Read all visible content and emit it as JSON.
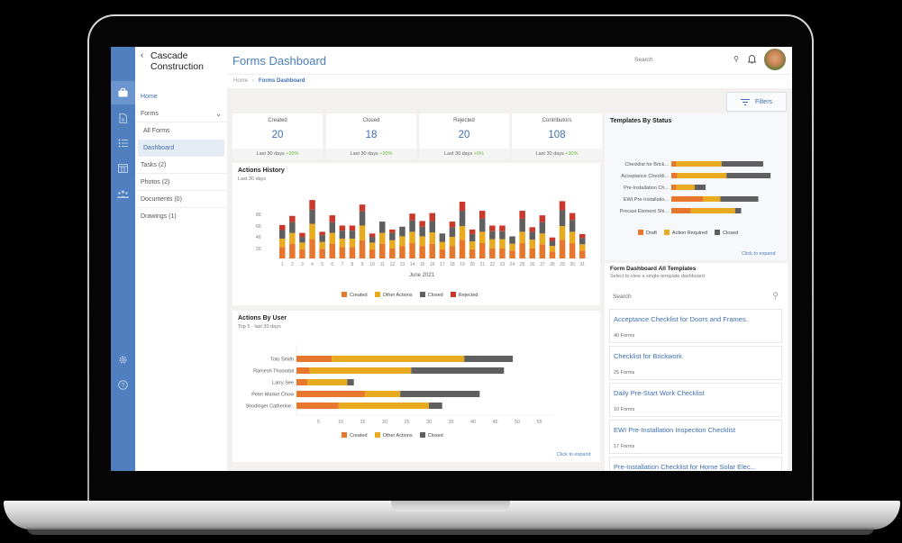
{
  "app": {
    "company": "Cascade Construction",
    "back_icon": "chevron-left-icon",
    "page_title": "Forms Dashboard"
  },
  "iconbar": {
    "items": [
      {
        "icon": "briefcase-icon",
        "active": true
      },
      {
        "icon": "document-icon",
        "active": false
      },
      {
        "icon": "checklist-icon",
        "active": false
      },
      {
        "icon": "table-icon",
        "active": false
      },
      {
        "icon": "team-icon",
        "active": false
      }
    ],
    "bottom": [
      {
        "icon": "gear-icon"
      },
      {
        "icon": "help-icon"
      }
    ]
  },
  "nav": {
    "home": "Home",
    "forms": "Forms",
    "all_forms": "All Forms",
    "dashboard": "Dashboard",
    "tasks": "Tasks (2)",
    "photos": "Photos (2)",
    "documents": "Documents (0)",
    "drawings": "Drawings (1)"
  },
  "header": {
    "search_placeholder": "Search",
    "breadcrumb": {
      "home": "Home",
      "current": "Forms Dashboard"
    },
    "filters_label": "Filters"
  },
  "stats": [
    {
      "label": "Created",
      "value": "20",
      "period": "Last 30 days",
      "change": "+30%"
    },
    {
      "label": "Closed",
      "value": "18",
      "period": "Last 30 days",
      "change": "+30%"
    },
    {
      "label": "Rejected",
      "value": "20",
      "period": "Last 30 days",
      "change": "+0%"
    },
    {
      "label": "Contributors",
      "value": "108",
      "period": "Last 30 days",
      "change": "+30%"
    }
  ],
  "colors": {
    "created": "#e8772e",
    "other": "#e8ab1f",
    "closed": "#5f5f5f",
    "rejected": "#c9392b",
    "draft": "#e8772e",
    "action_required": "#e8ab1f",
    "accent": "#3d6eb3"
  },
  "actions_history": {
    "title": "Actions History",
    "subtitle": "Last 30 days",
    "xlabel": "June 2021",
    "legend": [
      "Created",
      "Other Actions",
      "Closed",
      "Rejected"
    ]
  },
  "actions_by_user": {
    "title": "Actions By User",
    "subtitle": "Top 5 - last 30 days",
    "legend": [
      "Created",
      "Other Actions",
      "Closed"
    ],
    "expand": "Click to expand"
  },
  "templates_by_status": {
    "title": "Templates By Status",
    "legend": [
      "Draft",
      "Action Required",
      "Closed"
    ],
    "expand": "Click to expand"
  },
  "all_templates": {
    "title": "Form Dashboard All Templates",
    "subtitle": "Select to view a single-template dashboard",
    "search_placeholder": "Search",
    "items": [
      {
        "name": "Acceptance Checklist for Doors and Frames.",
        "count": "40 Forms"
      },
      {
        "name": "Checklist for Brickwork",
        "count": "25 Forms"
      },
      {
        "name": "Daily Pre-Start Work Checklist",
        "count": "10 Forms"
      },
      {
        "name": "EWI Pre-Installation Inspection Checklist",
        "count": "17 Forms"
      },
      {
        "name": "Pre-Installation Checklist for Home Solar Elec...",
        "count": ""
      }
    ]
  },
  "chart_data": [
    {
      "type": "bar",
      "stacked": true,
      "title": "Actions History",
      "subtitle": "Last 30 days",
      "xlabel": "June 2021",
      "ylabel": "",
      "y_ticks": [
        20,
        40,
        60,
        80
      ],
      "ylim": [
        0,
        100
      ],
      "legend_position": "bottom",
      "categories": [
        "1",
        "2",
        "3",
        "4",
        "5",
        "6",
        "7",
        "8",
        "9",
        "10",
        "11",
        "12",
        "13",
        "14",
        "15",
        "16",
        "17",
        "18",
        "19",
        "20",
        "21",
        "22",
        "23",
        "24",
        "25",
        "26",
        "27",
        "28",
        "29",
        "30",
        "31"
      ],
      "series": [
        {
          "name": "Created",
          "values": [
            20,
            26,
            16,
            34,
            17,
            26,
            20,
            20,
            32,
            16,
            26,
            18,
            22,
            27,
            22,
            26,
            16,
            22,
            33,
            16,
            27,
            18,
            18,
            14,
            27,
            18,
            25,
            12,
            33,
            27,
            14
          ]
        },
        {
          "name": "Other Actions",
          "values": [
            15,
            19,
            12,
            27,
            12,
            19,
            15,
            15,
            26,
            12,
            19,
            14,
            17,
            20,
            17,
            20,
            13,
            16,
            24,
            14,
            20,
            16,
            16,
            12,
            20,
            15,
            19,
            10,
            24,
            20,
            11
          ]
        },
        {
          "name": "Closed",
          "values": [
            15,
            19,
            10,
            25,
            12,
            19,
            14,
            14,
            25,
            10,
            20,
            13,
            17,
            20,
            17,
            20,
            15,
            17,
            27,
            13,
            23,
            14,
            14,
            13,
            23,
            14,
            20,
            9,
            28,
            21,
            11
          ]
        },
        {
          "name": "Rejected",
          "values": [
            9,
            11,
            7,
            17,
            6,
            12,
            9,
            9,
            12,
            6,
            0,
            6,
            0,
            12,
            10,
            14,
            0,
            10,
            16,
            8,
            14,
            10,
            10,
            0,
            14,
            8,
            12,
            6,
            16,
            12,
            7
          ]
        }
      ]
    },
    {
      "type": "bar",
      "orientation": "horizontal",
      "stacked": true,
      "title": "Actions By User",
      "subtitle": "Top 5 - last 30 days",
      "categories": [
        "Toto Smith",
        "Ramesh Thoondal",
        "Larry See",
        "Peter Markie Chow",
        "Shodinger Catherine.."
      ],
      "x_ticks": [
        5,
        10,
        15,
        20,
        25,
        30,
        35,
        40,
        45,
        50,
        55
      ],
      "xlim": [
        0,
        57
      ],
      "legend_position": "bottom",
      "series": [
        {
          "name": "Created",
          "values": [
            8,
            3,
            2.5,
            15.5,
            9.5
          ]
        },
        {
          "name": "Other Actions",
          "values": [
            30,
            23,
            9,
            8,
            20.5
          ]
        },
        {
          "name": "Closed",
          "values": [
            11,
            21,
            1.5,
            18,
            3
          ]
        }
      ]
    },
    {
      "type": "bar",
      "orientation": "horizontal",
      "stacked": true,
      "title": "Templates By Status",
      "categories": [
        "Checklist for Brick...",
        "Acceptance Checkli...",
        "Pre-Installation Ch...",
        "EWI Pre-Installatio...",
        "Precast Element Shi..."
      ],
      "legend_position": "bottom",
      "series": [
        {
          "name": "Draft",
          "values": [
            2,
            2.5,
            2,
            13,
            8
          ]
        },
        {
          "name": "Action Required",
          "values": [
            18.5,
            20,
            7.5,
            7,
            18
          ]
        },
        {
          "name": "Closed",
          "values": [
            17,
            18,
            4.5,
            15.5,
            2.5
          ]
        }
      ]
    }
  ]
}
